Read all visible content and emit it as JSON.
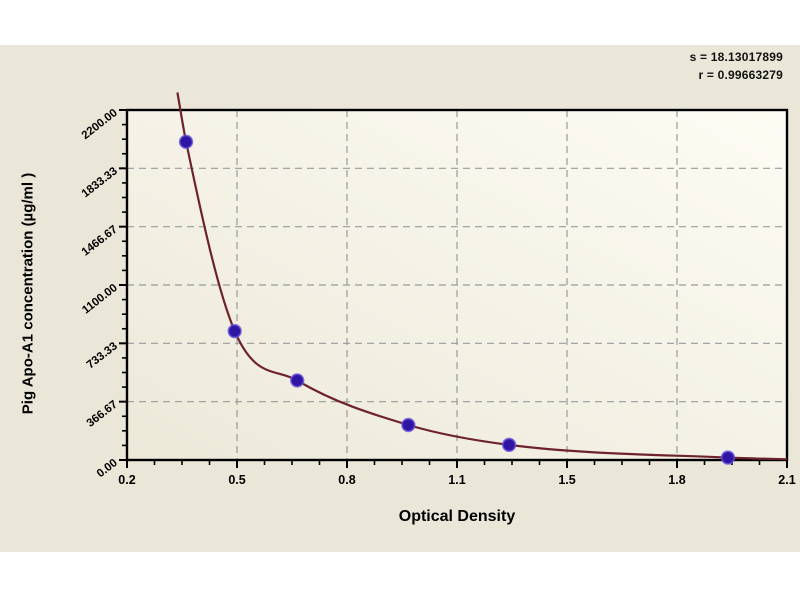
{
  "chart": {
    "background_color": "#eae7d8",
    "stats": {
      "line1": "s = 18.13017899",
      "line2": "r = 0.99663279"
    },
    "x_title": "Optical Density",
    "y_title": "Pig Apo-A1 concentration (µg/ml )"
  },
  "chart_data": {
    "type": "line",
    "title": "",
    "xlabel": "Optical Density",
    "ylabel": "Pig Apo-A1 concentration (µg/ml )",
    "xlim": [
      0.2,
      2.1
    ],
    "ylim": [
      0,
      2200
    ],
    "grid": true,
    "x_tick_values": [
      0.2,
      0.5167,
      0.8333,
      1.15,
      1.4667,
      1.7833,
      2.1
    ],
    "x_tick_labels": [
      "0.2",
      "0.5",
      "0.8",
      "1.1",
      "1.5",
      "1.8",
      "2.1"
    ],
    "y_tick_values": [
      0,
      366.67,
      733.33,
      1100,
      1466.67,
      1833.33,
      2200
    ],
    "y_tick_labels": [
      "0.00",
      "366.67",
      "733.33",
      "1100.00",
      "1466.67",
      "1833.33",
      "2200.00"
    ],
    "annotations": [
      "s = 18.13017899",
      "r = 0.99663279"
    ],
    "series": [
      {
        "name": "fitted-standard-curve",
        "type": "curve",
        "color": "#6e222c",
        "anchors": [
          [
            0.345,
            2310
          ],
          [
            0.37,
            2000
          ],
          [
            0.51,
            810
          ],
          [
            0.69,
            500
          ],
          [
            1.01,
            220
          ],
          [
            1.3,
            95
          ],
          [
            1.93,
            15
          ],
          [
            2.1,
            5
          ]
        ]
      },
      {
        "name": "standard-points",
        "type": "scatter",
        "color": "#2f15a3",
        "halo_color": "#6b50d8",
        "points": [
          [
            0.37,
            2000
          ],
          [
            0.51,
            810
          ],
          [
            0.69,
            500
          ],
          [
            1.01,
            220
          ],
          [
            1.3,
            95
          ],
          [
            1.93,
            15
          ]
        ]
      }
    ],
    "colors": {
      "grid": "#9a9a9a",
      "frame": "#000000",
      "tick": "#000000",
      "plot_bg_left": "#ece9d9",
      "plot_bg_right": "#fdfcf4"
    }
  }
}
